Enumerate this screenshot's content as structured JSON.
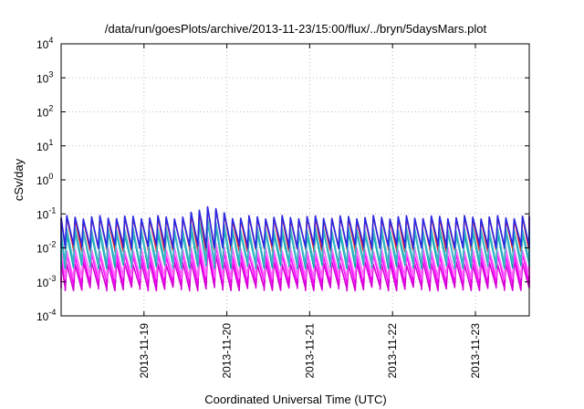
{
  "chart_data": {
    "type": "line",
    "title": "/data/run/goesPlots/archive/2013-11-23/15:00/flux/../bryn/5daysMars.plot",
    "xlabel": "Coordinated Universal Time (UTC)",
    "ylabel": "cSv/day",
    "y_scale": "log",
    "ylim_exponents": [
      -4,
      4
    ],
    "y_tick_exponents": [
      -4,
      -3,
      -2,
      -1,
      0,
      1,
      2,
      3,
      4
    ],
    "y_tick_base": "10",
    "x_ticks": [
      "2013-11-19",
      "2013-11-20",
      "2013-11-21",
      "2013-11-22",
      "2013-11-23"
    ],
    "xlim_days": [
      -1.0,
      4.65
    ],
    "x_ticks_days": [
      0,
      1,
      2,
      3,
      4
    ],
    "grid": true,
    "period_days": 0.1,
    "series": [
      {
        "color": "#e3171c",
        "peak_log": -1.12,
        "base_log": -2.05
      },
      {
        "color": "#ff00ff",
        "peak_log": -2.2,
        "base_log": -3.05
      },
      {
        "color": "#d400d4",
        "peak_log": -2.45,
        "base_log": -3.2
      },
      {
        "color": "#ff66ff",
        "peak_log": -2.05,
        "base_log": -2.85
      },
      {
        "color": "#00aaaa",
        "peak_log": -1.55,
        "base_log": -2.55
      },
      {
        "color": "#3cb4c8",
        "peak_log": -1.45,
        "base_log": -2.45
      },
      {
        "color": "#2828e6",
        "peak_log": -1.1,
        "base_log": -1.95
      }
    ],
    "highlight": {
      "center_day": 0.75,
      "width_days": 0.55,
      "boost_log": 0.35
    }
  }
}
